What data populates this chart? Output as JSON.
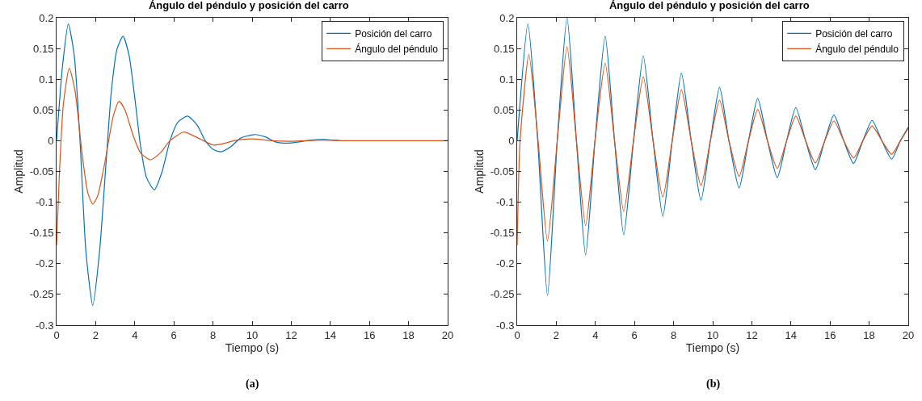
{
  "chart_data": [
    {
      "type": "line",
      "title": "Ángulo del péndulo y posición del carro",
      "xlabel": "Tiempo (s)",
      "ylabel": "Amplitud",
      "annotations": [
        "(a)"
      ],
      "xlim": [
        0,
        20
      ],
      "xticks": [
        0,
        2,
        4,
        6,
        8,
        10,
        12,
        14,
        16,
        18,
        20
      ],
      "ylim": [
        -0.3,
        0.2
      ],
      "yticks": [
        -0.3,
        -0.25,
        -0.2,
        -0.15,
        -0.1,
        -0.05,
        0,
        0.05,
        0.1,
        0.15,
        0.2
      ],
      "grid": false,
      "legend": "top right",
      "series": [
        {
          "name": "Posición del carro",
          "color": "#0072bd",
          "x": [
            0,
            0.3,
            0.6,
            0.9,
            1.2,
            1.5,
            1.85,
            2.2,
            2.5,
            2.8,
            3.1,
            3.4,
            3.7,
            4.0,
            4.3,
            4.6,
            5.0,
            5.4,
            5.8,
            6.2,
            6.7,
            7.2,
            7.6,
            8.0,
            8.4,
            8.9,
            9.4,
            10.1,
            10.7,
            11.2,
            11.8,
            12.4,
            13.0,
            13.7,
            14.5
          ],
          "values": [
            0,
            0.12,
            0.19,
            0.14,
            0,
            -0.18,
            -0.268,
            -0.18,
            -0.05,
            0.08,
            0.15,
            0.17,
            0.14,
            0.07,
            -0.01,
            -0.06,
            -0.08,
            -0.05,
            0,
            0.03,
            0.04,
            0.025,
            0,
            -0.014,
            -0.018,
            -0.01,
            0.004,
            0.01,
            0.006,
            -0.002,
            -0.004,
            -0.002,
            0.001,
            0.002,
            0
          ]
        },
        {
          "name": "Ángulo del péndulo",
          "color": "#d95319",
          "x": [
            0,
            0.15,
            0.35,
            0.65,
            0.95,
            1.3,
            1.6,
            1.85,
            2.1,
            2.5,
            2.9,
            3.2,
            3.5,
            3.9,
            4.3,
            4.8,
            5.3,
            5.8,
            6.5,
            7.2,
            8.0,
            8.5,
            9.2,
            10,
            11,
            12,
            13.5,
            15,
            20
          ],
          "values": [
            -0.17,
            -0.05,
            0.06,
            0.118,
            0.08,
            -0.02,
            -0.085,
            -0.103,
            -0.09,
            -0.03,
            0.04,
            0.064,
            0.05,
            0.01,
            -0.02,
            -0.031,
            -0.02,
            0,
            0.014,
            0.005,
            -0.007,
            -0.005,
            0.001,
            0.003,
            0,
            -0.001,
            0.001,
            0,
            0
          ]
        }
      ]
    },
    {
      "type": "line",
      "title": "Ángulo del péndulo y posición del carro",
      "xlabel": "Tiempo (s)",
      "ylabel": "Amplitud",
      "annotations": [
        "(b)"
      ],
      "xlim": [
        0,
        20
      ],
      "xticks": [
        0,
        2,
        4,
        6,
        8,
        10,
        12,
        14,
        16,
        18,
        20
      ],
      "ylim": [
        -0.3,
        0.2
      ],
      "yticks": [
        -0.3,
        -0.25,
        -0.2,
        -0.15,
        -0.1,
        -0.05,
        0,
        0.05,
        0.1,
        0.15,
        0.2
      ],
      "grid": false,
      "legend": "top right",
      "series": [
        {
          "name": "Posición del carro",
          "color": "#0072bd",
          "x": [
            0,
            0.55,
            1.05,
            1.55,
            2.05,
            2.55,
            3.03,
            3.5,
            3.98,
            4.5,
            4.98,
            5.45,
            5.95,
            6.45,
            6.95,
            7.45,
            7.93,
            8.4,
            8.9,
            9.4,
            9.88,
            10.35,
            10.83,
            11.35,
            11.83,
            12.3,
            12.8,
            13.3,
            13.78,
            14.25,
            14.75,
            15.25,
            15.73,
            16.2,
            16.7,
            17.2,
            17.68,
            18.15,
            18.65,
            19.15,
            19.6,
            20
          ],
          "values": [
            0,
            0.19,
            0,
            -0.252,
            0,
            0.2,
            0,
            -0.186,
            0,
            0.17,
            0,
            -0.153,
            0,
            0.138,
            0,
            -0.123,
            0,
            0.11,
            0,
            -0.097,
            0,
            0.087,
            0,
            -0.077,
            0,
            0.069,
            0,
            -0.06,
            0,
            0.054,
            0,
            -0.047,
            0,
            0.042,
            0,
            -0.037,
            0,
            0.033,
            0,
            -0.03,
            0,
            0.022
          ]
        },
        {
          "name": "Ángulo del péndulo",
          "color": "#d95319",
          "x": [
            0,
            0.15,
            0.6,
            1.07,
            1.55,
            2.05,
            2.55,
            3.03,
            3.5,
            3.98,
            4.5,
            4.98,
            5.45,
            5.95,
            6.45,
            6.95,
            7.45,
            7.93,
            8.4,
            8.9,
            9.4,
            9.88,
            10.35,
            10.83,
            11.35,
            11.83,
            12.3,
            12.8,
            13.3,
            13.78,
            14.25,
            14.75,
            15.25,
            15.73,
            16.2,
            16.7,
            17.2,
            17.68,
            18.15,
            18.65,
            19.15,
            19.6,
            20
          ],
          "values": [
            -0.17,
            0,
            0.14,
            0,
            -0.163,
            0,
            0.153,
            0,
            -0.138,
            0,
            0.126,
            0,
            -0.115,
            0,
            0.104,
            0,
            -0.092,
            0,
            0.083,
            0,
            -0.073,
            0,
            0.066,
            0,
            -0.058,
            0,
            0.051,
            0,
            -0.045,
            0,
            0.04,
            0,
            -0.036,
            0,
            0.032,
            0,
            -0.028,
            0,
            0.024,
            0,
            -0.022,
            0,
            0.02
          ]
        }
      ]
    }
  ]
}
